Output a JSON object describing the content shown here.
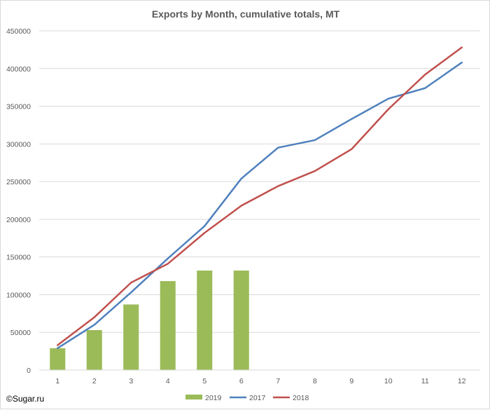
{
  "chart_data": {
    "type": "bar",
    "title": "Exports by Month, cumulative totals, MT",
    "xlabel": "",
    "ylabel": "",
    "categories": [
      "1",
      "2",
      "3",
      "4",
      "5",
      "6",
      "7",
      "8",
      "9",
      "10",
      "11",
      "12"
    ],
    "ylim": [
      0,
      450000
    ],
    "yticks": [
      0,
      50000,
      100000,
      150000,
      200000,
      250000,
      300000,
      350000,
      400000,
      450000
    ],
    "ytick_labels": [
      "0",
      "50000",
      "100000",
      "150000",
      "200000",
      "250000",
      "300000",
      "350000",
      "400000",
      "450000"
    ],
    "grid": true,
    "legend_position": "bottom",
    "series": [
      {
        "name": "2019",
        "kind": "bar",
        "color": "#9bbb59",
        "values": [
          29000,
          53000,
          87000,
          118000,
          132000,
          132000,
          null,
          null,
          null,
          null,
          null,
          null
        ]
      },
      {
        "name": "2017",
        "kind": "line",
        "color": "#4f81bd",
        "values": [
          29000,
          60000,
          103000,
          148000,
          191000,
          254000,
          295000,
          305000,
          333000,
          360000,
          374000,
          408000
        ]
      },
      {
        "name": "2018",
        "kind": "line",
        "color": "#c0504d",
        "values": [
          33000,
          70000,
          116000,
          141000,
          182000,
          218000,
          244000,
          264000,
          293000,
          346000,
          392000,
          428000
        ]
      }
    ]
  },
  "credit": "©Sugar.ru"
}
